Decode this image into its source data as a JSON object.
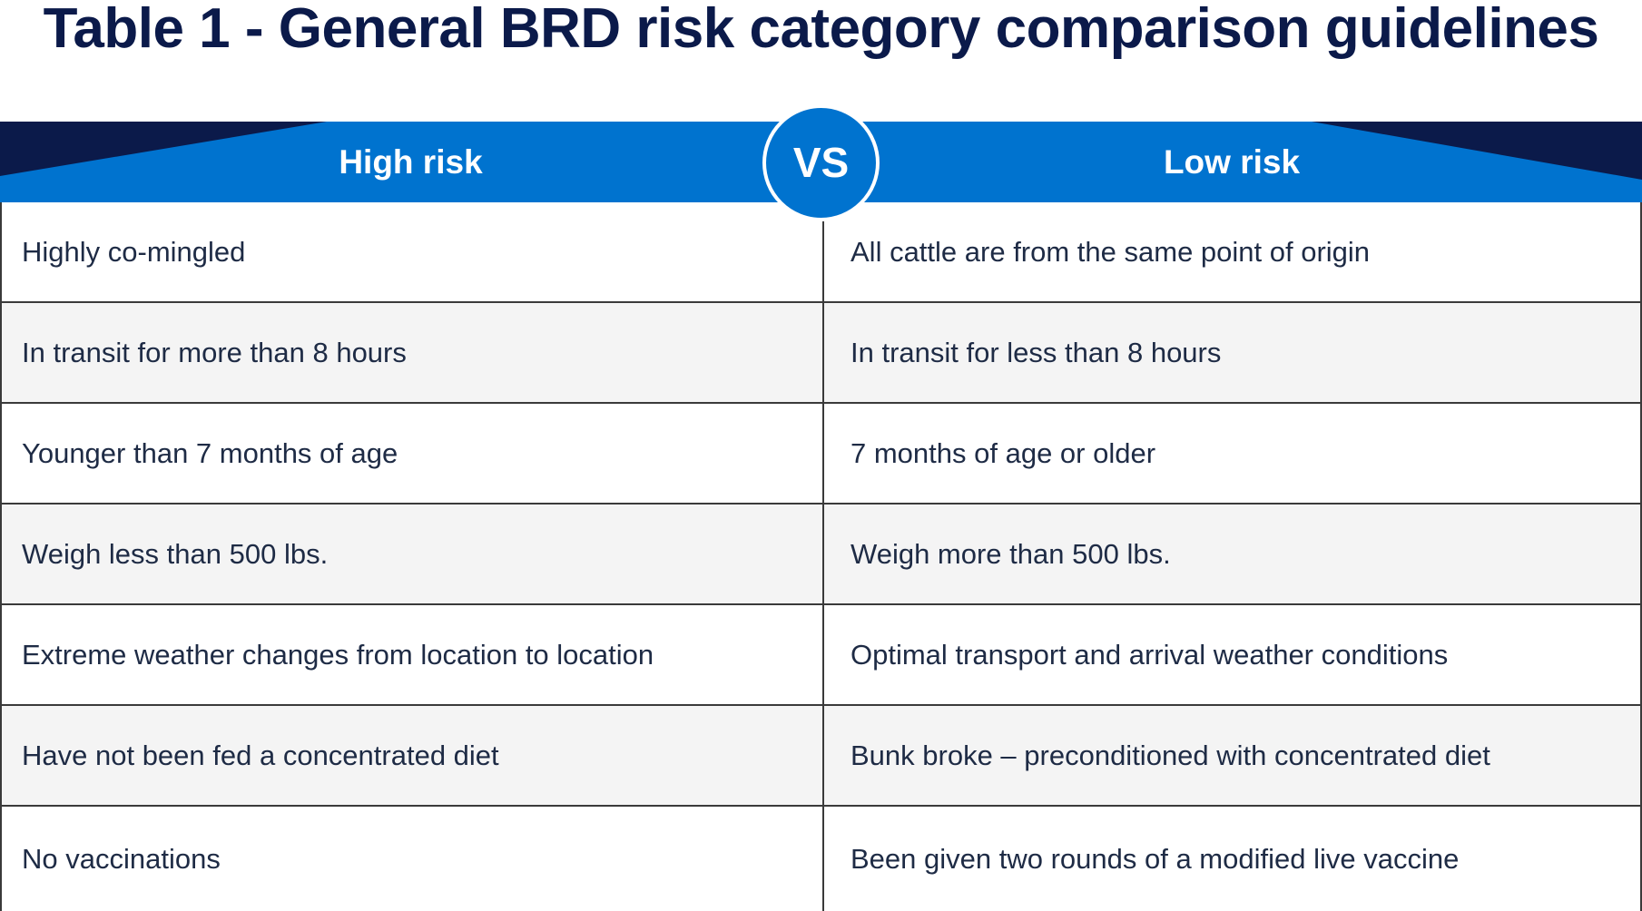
{
  "title": "Table 1 - General BRD risk category comparison guidelines",
  "header": {
    "left_label": "High risk",
    "badge_label": "VS",
    "right_label": "Low risk"
  },
  "colors": {
    "title": "#0b1a4a",
    "header_blue": "#0073cf",
    "header_navy": "#0b1a4a",
    "row_alt": "#f4f4f4",
    "border": "#3a3a3a"
  },
  "rows": [
    {
      "high": "Highly co-mingled",
      "low": "All cattle are from the same point of origin"
    },
    {
      "high": "In transit for more than 8 hours",
      "low": "In transit for less than 8 hours"
    },
    {
      "high": "Younger than 7 months of age",
      "low": "7 months of age or older"
    },
    {
      "high": "Weigh less than 500 lbs.",
      "low": "Weigh more than 500 lbs."
    },
    {
      "high": "Extreme weather changes from location to location",
      "low": "Optimal transport and arrival weather conditions"
    },
    {
      "high": "Have not been fed a concentrated diet",
      "low": "Bunk broke – preconditioned with concentrated diet"
    },
    {
      "high": "No vaccinations",
      "low": "Been given two rounds of a modified live vaccine"
    }
  ]
}
